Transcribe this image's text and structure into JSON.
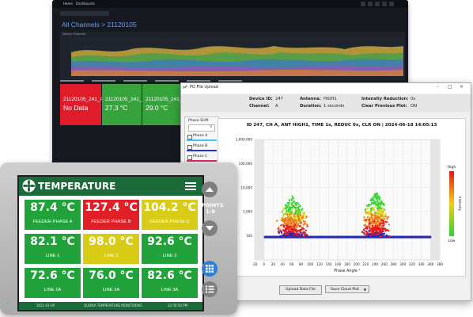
{
  "dashboard": {
    "breadcrumb": [
      "Home",
      "Dashboards"
    ],
    "title": "All Channels > 21120105",
    "panel_title": "Device Channels",
    "tiles": [
      {
        "label": "21120105_241_A",
        "value": "No Data",
        "color": "#e01b2a"
      },
      {
        "label": "21120105_241_B",
        "value": "27.3 °C",
        "color": "#37a33c"
      },
      {
        "label": "21120105_241_C",
        "value": "29.0 °C",
        "color": "#37a33c"
      },
      {
        "label": "",
        "value": "",
        "color": "#37a33c"
      },
      {
        "label": "",
        "value": "",
        "color": "#37a33c"
      }
    ]
  },
  "pd_window": {
    "title": "PD File Upload",
    "info": {
      "device_id_label": "Device ID:",
      "device_id": "247",
      "channel_label": "Channel:",
      "channel": "A",
      "antenna_label": "Antenna:",
      "antenna": "HIGH1",
      "duration_label": "Duration:",
      "duration": "1 seconds",
      "intensity_label": "Intensity Reduction:",
      "intensity": "0x",
      "clear_label": "Clear Previous Plot:",
      "clear": "ON"
    },
    "sidebar": {
      "title": "Phase Shift",
      "spinner_value": "0",
      "phases": [
        {
          "label": "Phase A",
          "color": "#38c8f0"
        },
        {
          "label": "Phase B",
          "color": "#2434c8"
        },
        {
          "label": "Phase C",
          "color": "#e0245c"
        }
      ]
    },
    "buttons": {
      "upload": "Upload Data File",
      "save": "Save Cloud Plot"
    },
    "chart_data": {
      "type": "scatter",
      "title": "ID 247, CH A, ANT HIGH1, TIME 1s, REDUC 0x, CLR ON  |  2024-06-18 14:05:13",
      "xlabel": "Phase Angle °",
      "ylabel": "",
      "x_ticks": [
        "-20",
        "0",
        "20",
        "40",
        "60",
        "80",
        "100",
        "120",
        "140",
        "160",
        "180",
        "200",
        "220",
        "240",
        "260",
        "280",
        "300",
        "320",
        "340",
        "360",
        "380"
      ],
      "y_ticks": [
        "1,000,000",
        "100,000",
        "10,000",
        "1,000",
        "100"
      ],
      "x_range": [
        -20,
        380
      ],
      "y_scale": "log",
      "y_range": [
        10,
        1000000
      ],
      "legend": {
        "high": "High",
        "low": "Low",
        "axis_label": "Intensity",
        "placement": "right"
      },
      "grid": true,
      "clusters": [
        {
          "name_hidden": "",
          "x_center": 60,
          "x_spread": 38,
          "y_min_log": 2.0,
          "y_max_log": 3.7
        },
        {
          "name_hidden": "",
          "x_center": 240,
          "x_spread": 35,
          "y_min_log": 2.0,
          "y_max_log": 3.9
        }
      ],
      "baseline_log": 1.95
    }
  },
  "hmi": {
    "title": "TEMPERATURE",
    "points_label_1": "POINTS",
    "points_label_2": "1-9",
    "cells": [
      {
        "value": "87.4 °C",
        "label": "FEEDER PHASE A",
        "color": "#22a23a"
      },
      {
        "value": "127.4 °C",
        "label": "FEEDER PHASE B",
        "color": "#e01f26"
      },
      {
        "value": "104.2 °C",
        "label": "FEEDER PHASE C",
        "color": "#d8cc16"
      },
      {
        "value": "82.1 °C",
        "label": "LINE 1",
        "color": "#22a23a"
      },
      {
        "value": "98.0 °C",
        "label": "LINE 2",
        "color": "#d8cc16"
      },
      {
        "value": "92.6 °C",
        "label": "LINE 3",
        "color": "#22a23a"
      },
      {
        "value": "72.6 °C",
        "label": "LINE 1A",
        "color": "#22a23a"
      },
      {
        "value": "76.0 °C",
        "label": "LINE 2A",
        "color": "#22a23a"
      },
      {
        "value": "82.6 °C",
        "label": "LINE 3A",
        "color": "#22a23a"
      }
    ],
    "footer": {
      "date": "2021-01-09",
      "center": "QUDIKA TEMPERATURE MONITORING",
      "time": "22:56:54 PM"
    }
  }
}
